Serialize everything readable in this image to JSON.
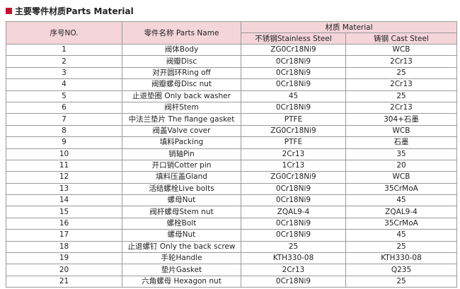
{
  "header": {
    "title": "主要零件材质Parts Material"
  },
  "table": {
    "columns": {
      "no": "序号NO.",
      "name": "零件名称 Parts Name",
      "material": "材质 Material",
      "stainless": "不锈钢Stainless Steel",
      "cast": "铸钢 Cast Steel"
    },
    "rows": [
      [
        "1",
        "阀体Body",
        "ZG0Cr18Ni9",
        "WCB"
      ],
      [
        "2",
        "阀瓣Disc",
        "0Cr18Ni9",
        "2Cr13"
      ],
      [
        "3",
        "对开圆环Ring off",
        "0Cr18Ni9",
        "25"
      ],
      [
        "4",
        "阀瓣螺母Disc nut",
        "0Cr18Ni9",
        "2Cr13"
      ],
      [
        "5",
        "止退垫圈 Only back washer",
        "45",
        "25"
      ],
      [
        "6",
        "阀杆Stem",
        "0Cr18Ni9",
        "2Cr13"
      ],
      [
        "7",
        "中法兰垫片 The flange gasket",
        "PTFE",
        "304+石墨"
      ],
      [
        "8",
        "阀盖Valve cover",
        "ZG0Cr18Ni9",
        "WCB"
      ],
      [
        "9",
        "填料Packing",
        "PTFE",
        "石墨"
      ],
      [
        "10",
        "销轴Pin",
        "2Cr13",
        "35"
      ],
      [
        "11",
        "开口销Cotter pin",
        "1Cr13",
        "20"
      ],
      [
        "12",
        "填料压盖Gland",
        "ZG0Cr18Ni9",
        "WCB"
      ],
      [
        "13",
        "活结螺栓Live bolts",
        "0Cr18Ni9",
        "35CrMoA"
      ],
      [
        "14",
        "螺母Nut",
        "0Cr18Ni9",
        "45"
      ],
      [
        "15",
        "阀杆螺母Stem nut",
        "ZQAL9-4",
        "ZQAL9-4"
      ],
      [
        "16",
        "螺栓Bolt",
        "0Cr18Ni9",
        "35CrMoA"
      ],
      [
        "17",
        "螺母Nut",
        "0Cr18Ni9",
        "45"
      ],
      [
        "18",
        "止退螺钉 Only the back screw",
        "25",
        "25"
      ],
      [
        "19",
        "手轮Handle",
        "KTH330-08",
        "KTH330-08"
      ],
      [
        "20",
        "垫片Gasket",
        "2Cr13",
        "Q235"
      ],
      [
        "21",
        "六角螺母 Hexagon nut",
        "0Cr18Ni9",
        "25"
      ]
    ]
  }
}
